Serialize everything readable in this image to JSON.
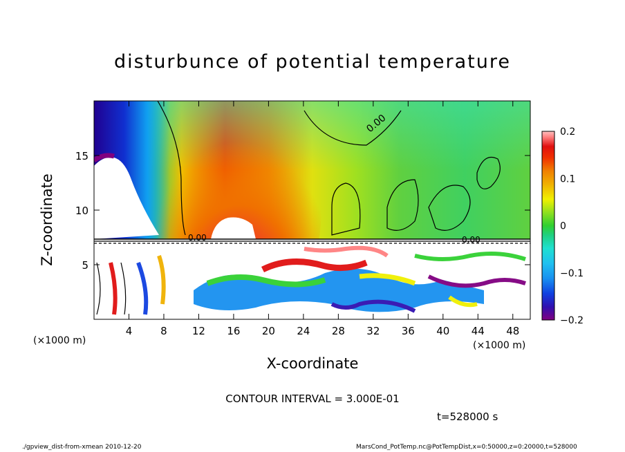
{
  "chart_data": {
    "type": "heatmap",
    "title": "disturbunce of potential temperature",
    "xlabel": "X-coordinate",
    "ylabel": "Z-coordinate",
    "x_unit": "(×1000 m)",
    "y_unit": "(×1000 m)",
    "xlim": [
      0,
      50
    ],
    "ylim": [
      0,
      20
    ],
    "x_ticks": [
      4,
      8,
      12,
      16,
      20,
      24,
      28,
      32,
      36,
      40,
      44,
      48
    ],
    "y_ticks": [
      5,
      10,
      15
    ],
    "colorbar": {
      "range": [
        -0.2,
        0.2
      ],
      "ticks": [
        "0.2",
        "0.1",
        "0",
        "−0.1",
        "−0.2"
      ],
      "colors": [
        "#800080",
        "#3010b0",
        "#1040e0",
        "#1890f0",
        "#20c0f0",
        "#20e0d0",
        "#20d080",
        "#30d030",
        "#90e020",
        "#f0f000",
        "#f0b000",
        "#f08000",
        "#f03000",
        "#e01010",
        "#ff8080",
        "#ffc0c0"
      ]
    },
    "contour_labels": [
      "0.00",
      "0.00",
      "0.00"
    ],
    "grid": false
  },
  "contour_interval": "CONTOUR INTERVAL = 3.000E-01",
  "time": "t=528000 s",
  "footer_left": "./gpview_dist-from-xmean  2010-12-20",
  "footer_right": "MarsCond_PotTemp.nc@PotTempDist,x=0:50000,z=0:20000,t=528000"
}
